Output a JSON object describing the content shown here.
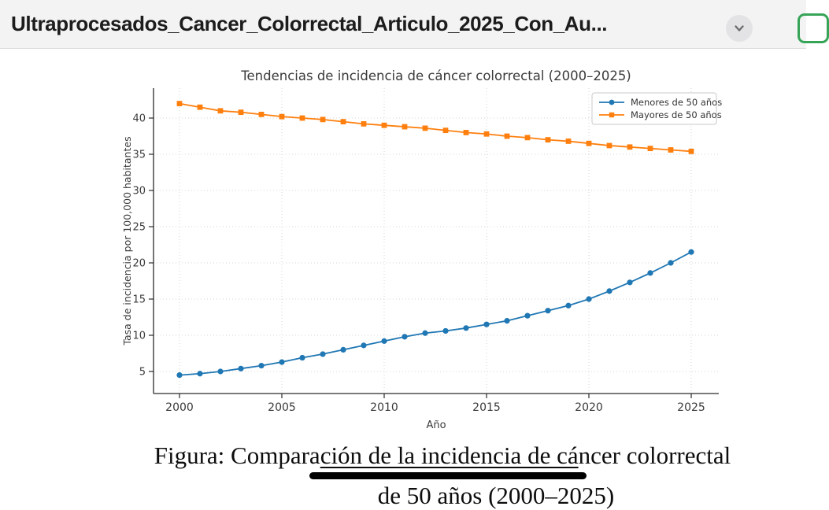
{
  "header": {
    "filename": "Ultraprocesados_Cancer_Colorrectal_Articulo_2025_Con_Au...",
    "chevron_icon": "chevron-down",
    "green_accent": "#36a457"
  },
  "chart_data": {
    "type": "line",
    "title": "Tendencias de incidencia de cáncer colorrectal (2000–2025)",
    "xlabel": "Año",
    "ylabel": "Tasa de incidencia por 100,000 habitantes",
    "x": [
      2000,
      2001,
      2002,
      2003,
      2004,
      2005,
      2006,
      2007,
      2008,
      2009,
      2010,
      2011,
      2012,
      2013,
      2014,
      2015,
      2016,
      2017,
      2018,
      2019,
      2020,
      2021,
      2022,
      2023,
      2024,
      2025
    ],
    "series": [
      {
        "name": "Menores de 50 años",
        "color": "#1f77b4",
        "marker": "circle",
        "values": [
          4.5,
          4.7,
          5.0,
          5.4,
          5.8,
          6.3,
          6.9,
          7.4,
          8.0,
          8.6,
          9.2,
          9.8,
          10.3,
          10.6,
          11.0,
          11.5,
          12.0,
          12.7,
          13.4,
          14.1,
          15.0,
          16.1,
          17.3,
          18.6,
          20.0,
          21.5
        ]
      },
      {
        "name": "Mayores de 50 años",
        "color": "#ff7f0e",
        "marker": "square",
        "values": [
          42.0,
          41.5,
          41.0,
          40.8,
          40.5,
          40.2,
          40.0,
          39.8,
          39.5,
          39.2,
          39.0,
          38.8,
          38.6,
          38.3,
          38.0,
          37.8,
          37.5,
          37.3,
          37.0,
          36.8,
          36.5,
          36.2,
          36.0,
          35.8,
          35.6,
          35.4
        ]
      }
    ],
    "xticks": [
      2000,
      2005,
      2010,
      2015,
      2020,
      2025
    ],
    "yticks": [
      5,
      10,
      15,
      20,
      25,
      30,
      35,
      40
    ],
    "xlim": [
      1998.7,
      2026.3
    ],
    "ylim": [
      1.9,
      44.2
    ],
    "grid": "dotted",
    "legend_position": "upper right",
    "text_color": "#3a3a3a",
    "grid_color": "#d6d6d6",
    "spine_color": "#2b2b2b"
  },
  "caption": {
    "line1_pre": "Figura: Compara",
    "line1_underlined": "ción de la incidencia de cá",
    "line1_post": "ncer colorrectal",
    "line2": "de 50 años (2000–2025)"
  }
}
